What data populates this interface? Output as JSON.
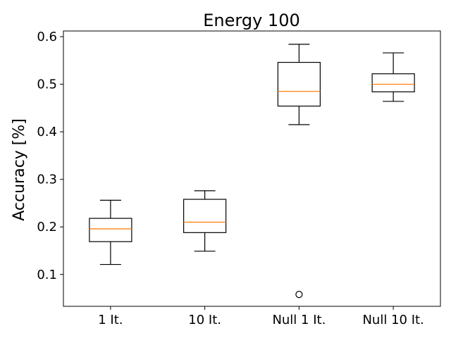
{
  "chart_data": {
    "type": "box",
    "title": "Energy 100",
    "xlabel": "",
    "ylabel": "Accuracy [%]",
    "ylim": [
      0.033,
      0.612
    ],
    "yticks": [
      0.1,
      0.2,
      0.3,
      0.4,
      0.5,
      0.6
    ],
    "ytick_labels": [
      "0.1",
      "0.2",
      "0.3",
      "0.4",
      "0.5",
      "0.6"
    ],
    "categories": [
      "1 It.",
      "10 It.",
      "Null 1 It.",
      "Null 10 It."
    ],
    "boxes": [
      {
        "whisker_low": 0.121,
        "q1": 0.169,
        "median": 0.196,
        "q3": 0.218,
        "whisker_high": 0.256,
        "outliers": []
      },
      {
        "whisker_low": 0.149,
        "q1": 0.188,
        "median": 0.21,
        "q3": 0.258,
        "whisker_high": 0.276,
        "outliers": []
      },
      {
        "whisker_low": 0.415,
        "q1": 0.454,
        "median": 0.485,
        "q3": 0.546,
        "whisker_high": 0.584,
        "outliers": [
          0.058
        ]
      },
      {
        "whisker_low": 0.464,
        "q1": 0.484,
        "median": 0.5,
        "q3": 0.522,
        "whisker_high": 0.566,
        "outliers": []
      }
    ],
    "colors": {
      "box": "#000000",
      "median": "#ff7f0e",
      "outlier": "#000000"
    },
    "grid": false,
    "legend": "none"
  }
}
